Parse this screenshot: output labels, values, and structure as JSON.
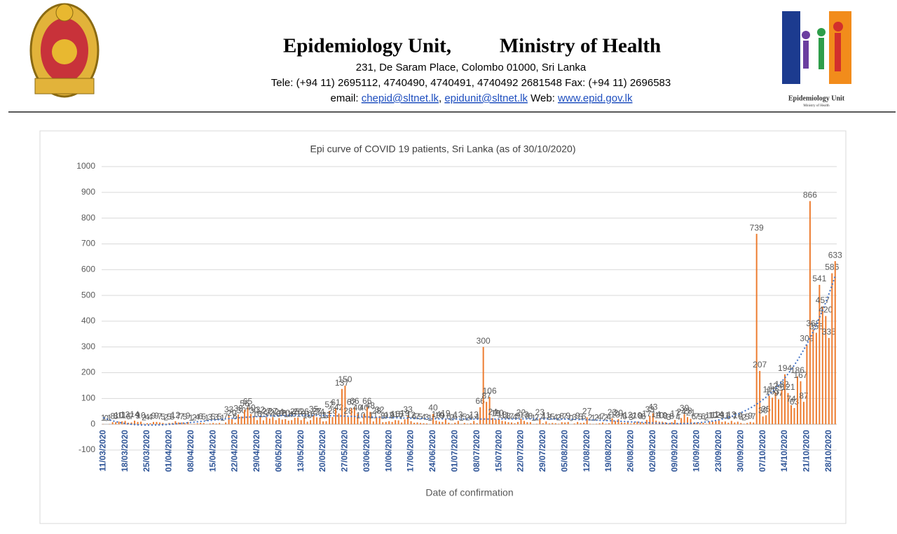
{
  "header": {
    "title_left": "Epidemiology Unit,",
    "title_right": "Ministry of Health",
    "address": "231, De Saram Place, Colombo 01000, Sri Lanka",
    "phone": "Tele: (+94 11) 2695112, 4740490, 4740491, 4740492 2681548  Fax: (+94 11) 2696583",
    "email_label": "email:",
    "emails": [
      "chepid@sltnet.lk",
      "epidunit@sltnet.lk"
    ],
    "separator": ",",
    "web_label": "Web:",
    "web": "www.epid.gov.lk",
    "logo_caption": "Epidemiology Unit",
    "logo_subcaption": "Ministry of Health"
  },
  "chart_data": {
    "type": "bar",
    "title": "Epi curve of COVID 19 patients, Sri Lanka  (as of 30/10/2020)",
    "x_label": "Date of confirmation",
    "color": "#ed7d31",
    "grid": true,
    "trendline": {
      "type": "polynomial",
      "color": "#4472c4"
    },
    "ylim": [
      -100,
      1000
    ],
    "yticks": [
      -100,
      0,
      100,
      200,
      300,
      400,
      500,
      600,
      700,
      800,
      900,
      1000
    ],
    "categories": [
      "11/03/2020",
      null,
      null,
      null,
      null,
      null,
      null,
      "18/03/2020",
      null,
      null,
      null,
      null,
      null,
      null,
      "25/03/2020",
      null,
      null,
      null,
      null,
      null,
      null,
      "01/04/2020",
      null,
      null,
      null,
      null,
      null,
      null,
      "08/04/2020",
      null,
      null,
      null,
      null,
      null,
      null,
      "15/04/2020",
      null,
      null,
      null,
      null,
      null,
      null,
      "22/04/2020",
      null,
      null,
      null,
      null,
      null,
      null,
      "29/04/2020",
      null,
      null,
      null,
      null,
      null,
      null,
      "06/05/2020",
      null,
      null,
      null,
      null,
      null,
      null,
      "13/05/2020",
      null,
      null,
      null,
      null,
      null,
      null,
      "20/05/2020",
      null,
      null,
      null,
      null,
      null,
      null,
      "27/05/2020",
      null,
      null,
      null,
      null,
      null,
      null,
      "03/06/2020",
      null,
      null,
      null,
      null,
      null,
      null,
      "10/06/2020",
      null,
      null,
      null,
      null,
      null,
      null,
      "17/06/2020",
      null,
      null,
      null,
      null,
      null,
      null,
      "24/06/2020",
      null,
      null,
      null,
      null,
      null,
      null,
      "01/07/2020",
      null,
      null,
      null,
      null,
      null,
      null,
      "08/07/2020",
      null,
      null,
      null,
      null,
      null,
      null,
      "15/07/2020",
      null,
      null,
      null,
      null,
      null,
      null,
      "22/07/2020",
      null,
      null,
      null,
      null,
      null,
      null,
      "29/07/2020",
      null,
      null,
      null,
      null,
      null,
      null,
      "05/08/2020",
      null,
      null,
      null,
      null,
      null,
      null,
      "12/08/2020",
      null,
      null,
      null,
      null,
      null,
      null,
      "19/08/2020",
      null,
      null,
      null,
      null,
      null,
      null,
      "26/08/2020",
      null,
      null,
      null,
      null,
      null,
      null,
      "02/09/2020",
      null,
      null,
      null,
      null,
      null,
      null,
      "09/09/2020",
      null,
      null,
      null,
      null,
      null,
      null,
      "16/09/2020",
      null,
      null,
      null,
      null,
      null,
      null,
      "23/09/2020",
      null,
      null,
      null,
      null,
      null,
      null,
      "30/09/2020",
      null,
      null,
      null,
      null,
      null,
      null,
      "07/10/2020",
      null,
      null,
      null,
      null,
      null,
      null,
      "14/10/2020",
      null,
      null,
      null,
      null,
      null,
      null,
      "21/10/2020",
      null,
      null,
      null,
      null,
      null,
      null,
      "28/10/2020",
      null,
      null
    ],
    "values": [
      1,
      0,
      1,
      8,
      8,
      10,
      11,
      13,
      6,
      7,
      14,
      9,
      10,
      2,
      4,
      4,
      9,
      9,
      7,
      5,
      2,
      5,
      5,
      12,
      7,
      7,
      5,
      9,
      1,
      2,
      4,
      6,
      5,
      1,
      3,
      5,
      3,
      5,
      1,
      7,
      33,
      20,
      6,
      38,
      30,
      56,
      65,
      40,
      30,
      16,
      32,
      15,
      27,
      22,
      27,
      16,
      24,
      18,
      20,
      14,
      16,
      25,
      26,
      16,
      26,
      10,
      16,
      35,
      27,
      24,
      11,
      12,
      52,
      28,
      61,
      42,
      137,
      150,
      28,
      62,
      66,
      40,
      10,
      40,
      66,
      48,
      11,
      28,
      32,
      8,
      9,
      12,
      9,
      16,
      15,
      7,
      19,
      33,
      12,
      6,
      7,
      5,
      4,
      3,
      1,
      40,
      14,
      10,
      9,
      19,
      6,
      2,
      6,
      13,
      1,
      5,
      2,
      4,
      13,
      4,
      66,
      300,
      87,
      106,
      24,
      19,
      20,
      13,
      11,
      8,
      7,
      4,
      9,
      22,
      13,
      8,
      8,
      1,
      2,
      23,
      4,
      11,
      3,
      5,
      4,
      2,
      8,
      7,
      9,
      0,
      3,
      9,
      5,
      6,
      27,
      2,
      1,
      2,
      4,
      7,
      2,
      4,
      23,
      13,
      20,
      7,
      6,
      12,
      3,
      7,
      10,
      8,
      6,
      17,
      33,
      43,
      14,
      10,
      10,
      8,
      3,
      8,
      17,
      4,
      24,
      39,
      28,
      21,
      6,
      7,
      5,
      6,
      2,
      11,
      10,
      12,
      14,
      9,
      11,
      6,
      13,
      7,
      10,
      5,
      2,
      5,
      9,
      7,
      739,
      207,
      30,
      35,
      111,
      103,
      124,
      97,
      132,
      194,
      121,
      74,
      63,
      186,
      167,
      87,
      309,
      866,
      368,
      355,
      541,
      457,
      420,
      335,
      586,
      633
    ]
  }
}
